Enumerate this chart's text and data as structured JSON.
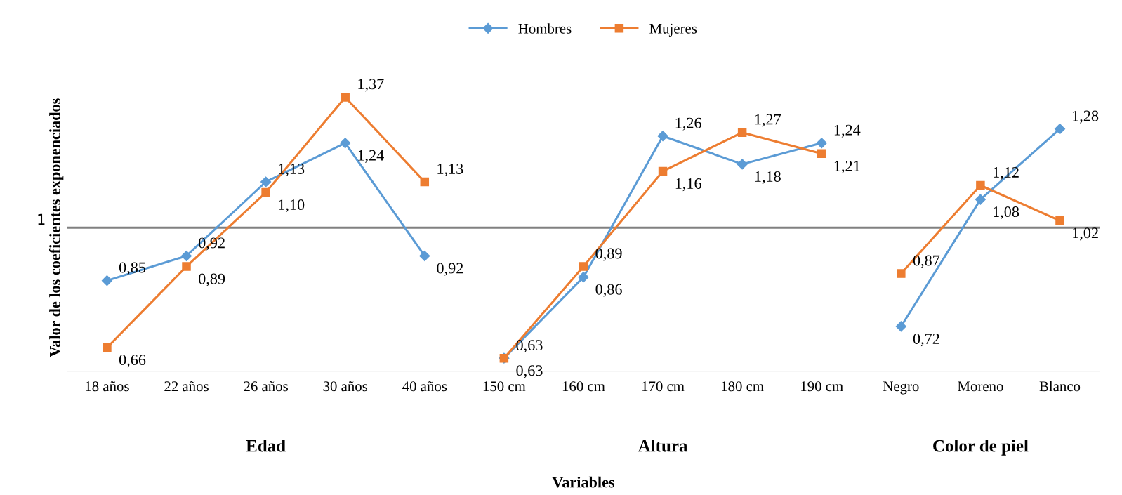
{
  "chart_data": {
    "type": "line",
    "ylabel": "Valor de los coeficientes exponenciados",
    "categories": [
      "18 años",
      "22 años",
      "26 años",
      "30 años",
      "40 años",
      "150 cm",
      "160 cm",
      "170 cm",
      "180 cm",
      "190 cm",
      "Negro",
      "Moreno",
      "Blanco"
    ],
    "series": [
      {
        "name": "Hombres",
        "color": "#5b9bd5",
        "marker": "diamond",
        "values": [
          0.85,
          0.92,
          1.13,
          1.24,
          0.92,
          null,
          null,
          null,
          null,
          null,
          null,
          null,
          null
        ],
        "value_labels": [
          "0,85",
          "0,92",
          "1,13",
          "1,24",
          "0,92",
          null,
          null,
          null,
          null,
          null,
          null,
          null,
          null
        ]
      },
      {
        "name": "Mujeres",
        "color": "#ed7d31",
        "marker": "square",
        "values": [
          0.66,
          0.89,
          1.1,
          1.37,
          1.13,
          null,
          null,
          null,
          null,
          null,
          null,
          null,
          null
        ],
        "value_labels": [
          "0,66",
          "0,89",
          "1,10",
          "1,37",
          "1,13",
          null,
          null,
          null,
          null,
          null,
          null,
          null,
          null
        ]
      },
      {
        "color": "#5b9bd5",
        "marker": "diamond",
        "values": [
          null,
          null,
          null,
          null,
          null,
          0.63,
          0.86,
          1.26,
          1.18,
          1.24,
          null,
          null,
          null
        ],
        "value_labels": [
          null,
          null,
          null,
          null,
          null,
          "0,63",
          "0,86",
          "1,26",
          "1,18",
          "1,24",
          null,
          null,
          null
        ]
      },
      {
        "color": "#ed7d31",
        "marker": "square",
        "values": [
          null,
          null,
          null,
          null,
          null,
          0.63,
          0.89,
          1.16,
          1.27,
          1.21,
          null,
          null,
          null
        ],
        "value_labels": [
          null,
          null,
          null,
          null,
          null,
          "0,63",
          "0,89",
          "1,16",
          "1,27",
          "1,21",
          null,
          null,
          null
        ]
      },
      {
        "color": "#5b9bd5",
        "marker": "diamond",
        "values": [
          null,
          null,
          null,
          null,
          null,
          null,
          null,
          null,
          null,
          null,
          0.72,
          1.08,
          1.28
        ],
        "value_labels": [
          null,
          null,
          null,
          null,
          null,
          null,
          null,
          null,
          null,
          null,
          "0,72",
          "1,08",
          "1,28"
        ]
      },
      {
        "color": "#ed7d31",
        "marker": "square",
        "values": [
          null,
          null,
          null,
          null,
          null,
          null,
          null,
          null,
          null,
          null,
          0.87,
          1.12,
          1.02
        ],
        "value_labels": [
          null,
          null,
          null,
          null,
          null,
          null,
          null,
          null,
          null,
          null,
          "0,87",
          "1,12",
          "1,02"
        ]
      }
    ],
    "tick_labels": "x",
    "legend": "top",
    "line_style": "solid",
    "ref_lines": [
      {
        "axis": "y",
        "value": 1,
        "label": "1",
        "color": "#808080"
      }
    ],
    "annotations": [
      "Edad",
      "Altura",
      "Color de piel",
      "Variables"
    ]
  }
}
